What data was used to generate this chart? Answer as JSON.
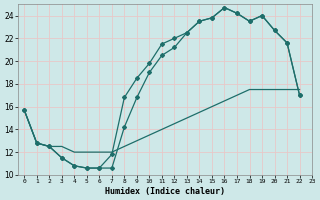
{
  "xlabel": "Humidex (Indice chaleur)",
  "xlim": [
    -0.5,
    23
  ],
  "ylim": [
    10,
    25
  ],
  "xticks": [
    0,
    1,
    2,
    3,
    4,
    5,
    6,
    7,
    8,
    9,
    10,
    11,
    12,
    13,
    14,
    15,
    16,
    17,
    18,
    19,
    20,
    21,
    22,
    23
  ],
  "yticks": [
    10,
    12,
    14,
    16,
    18,
    20,
    22,
    24
  ],
  "bg_color": "#cee8e8",
  "line_color": "#1e6e6a",
  "grid_color": "#e8c8c8",
  "curve1_x": [
    0,
    1,
    2,
    3,
    4,
    5,
    6,
    7,
    8,
    9,
    10,
    11,
    12,
    13,
    14,
    15,
    16,
    17,
    18,
    19,
    20,
    21,
    22
  ],
  "curve1_y": [
    15.7,
    12.8,
    12.5,
    11.5,
    10.8,
    10.6,
    10.6,
    10.6,
    14.2,
    16.8,
    19.0,
    20.5,
    21.2,
    22.5,
    23.5,
    23.8,
    24.7,
    24.2,
    23.5,
    24.0,
    22.7,
    21.6,
    17.0
  ],
  "curve2_x": [
    0,
    1,
    2,
    3,
    4,
    5,
    6,
    7,
    8,
    9,
    10,
    11,
    12,
    13,
    14,
    15,
    16,
    17,
    18,
    19,
    20,
    21,
    22
  ],
  "curve2_y": [
    15.7,
    12.8,
    12.5,
    11.5,
    10.8,
    10.6,
    10.6,
    11.8,
    16.8,
    18.5,
    19.8,
    21.5,
    22.0,
    22.5,
    23.5,
    23.8,
    24.7,
    24.2,
    23.5,
    24.0,
    22.7,
    21.6,
    17.0
  ],
  "curve3_x": [
    0,
    1,
    2,
    3,
    4,
    5,
    6,
    7,
    8,
    9,
    10,
    11,
    12,
    13,
    14,
    15,
    16,
    17,
    18,
    19,
    20,
    21,
    22
  ],
  "curve3_y": [
    15.7,
    12.8,
    12.5,
    12.5,
    12.0,
    12.0,
    12.0,
    12.0,
    12.5,
    13.0,
    13.5,
    14.0,
    14.5,
    15.0,
    15.5,
    16.0,
    16.5,
    17.0,
    17.5,
    17.5,
    17.5,
    17.5,
    17.5
  ]
}
